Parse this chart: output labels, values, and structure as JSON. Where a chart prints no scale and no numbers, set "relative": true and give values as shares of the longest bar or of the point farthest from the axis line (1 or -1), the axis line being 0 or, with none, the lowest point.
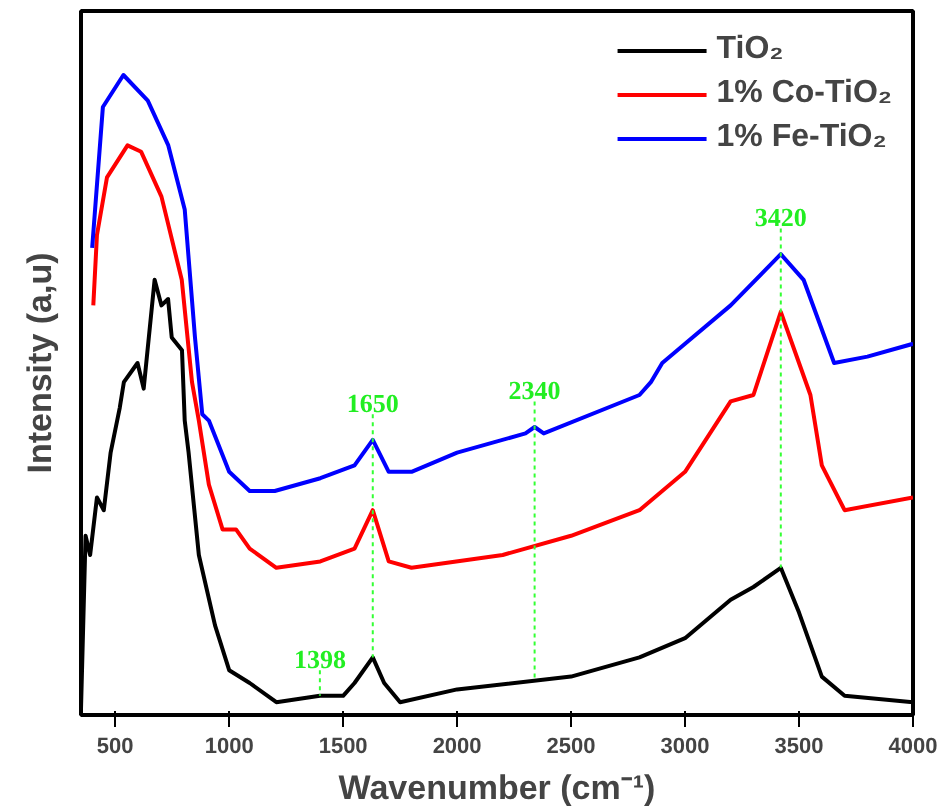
{
  "chart_data": {
    "type": "line",
    "xlabel": "Wavenumber (cm⁻¹)",
    "ylabel": "Intensity (a,u)",
    "relative": true,
    "xlim": [
      350,
      4000
    ],
    "xticks": [
      500,
      1000,
      1500,
      2000,
      2500,
      3000,
      3500,
      4000
    ],
    "grid": false,
    "legend": "top right",
    "marker": "none",
    "line_style": "solid",
    "series": [
      {
        "name": "TiO₂",
        "color": "#000000",
        "x": [
          350,
          370,
          390,
          420,
          450,
          480,
          520,
          538,
          598,
          625,
          673,
          703,
          732,
          748,
          793,
          805,
          822,
          867,
          938,
          1000,
          1090,
          1207,
          1398,
          1500,
          1550,
          1630,
          1680,
          1750,
          2000,
          2500,
          2800,
          3000,
          3200,
          3300,
          3420,
          3500,
          3600,
          3700,
          4000
        ],
        "values": [
          0.01,
          0.28,
          0.25,
          0.34,
          0.32,
          0.41,
          0.48,
          0.52,
          0.55,
          0.51,
          0.68,
          0.64,
          0.65,
          0.59,
          0.57,
          0.46,
          0.41,
          0.25,
          0.14,
          0.07,
          0.05,
          0.02,
          0.03,
          0.03,
          0.05,
          0.09,
          0.05,
          0.02,
          0.04,
          0.06,
          0.09,
          0.12,
          0.18,
          0.2,
          0.23,
          0.16,
          0.06,
          0.03,
          0.02
        ]
      },
      {
        "name": "1% Co-TiO₂",
        "color": "#ff0000",
        "x": [
          404,
          420,
          464,
          554,
          614,
          703,
          792,
          837,
          867,
          911,
          971,
          1030,
          1090,
          1207,
          1400,
          1550,
          1630,
          1700,
          1800,
          2200,
          2500,
          2800,
          3000,
          3200,
          3300,
          3420,
          3500,
          3550,
          3600,
          3700,
          4000
        ],
        "values": [
          0.64,
          0.75,
          0.84,
          0.89,
          0.88,
          0.81,
          0.68,
          0.52,
          0.46,
          0.36,
          0.29,
          0.29,
          0.26,
          0.23,
          0.24,
          0.26,
          0.32,
          0.24,
          0.23,
          0.25,
          0.28,
          0.32,
          0.38,
          0.49,
          0.5,
          0.63,
          0.55,
          0.5,
          0.39,
          0.32,
          0.34
        ]
      },
      {
        "name": "1% Fe-TiO₂",
        "color": "#0000ff",
        "x": [
          399,
          446,
          536,
          643,
          733,
          805,
          850,
          882,
          911,
          1000,
          1090,
          1200,
          1400,
          1550,
          1630,
          1700,
          1800,
          2000,
          2300,
          2340,
          2380,
          2800,
          2850,
          2900,
          3000,
          3200,
          3420,
          3520,
          3654,
          3800,
          4000
        ],
        "values": [
          0.73,
          0.95,
          1,
          0.96,
          0.89,
          0.79,
          0.59,
          0.47,
          0.46,
          0.38,
          0.35,
          0.35,
          0.37,
          0.39,
          0.43,
          0.38,
          0.38,
          0.41,
          0.44,
          0.45,
          0.44,
          0.5,
          0.52,
          0.55,
          0.58,
          0.64,
          0.72,
          0.68,
          0.55,
          0.56,
          0.58
        ]
      }
    ],
    "annotations": [
      {
        "text": "1398",
        "x": 1398,
        "y": 0.03
      },
      {
        "text": "1650",
        "x": 1630,
        "y": 0.43
      },
      {
        "text": "2340",
        "x": 2340,
        "y": 0.45
      },
      {
        "text": "3420",
        "x": 3420,
        "y": 0.72
      }
    ]
  }
}
